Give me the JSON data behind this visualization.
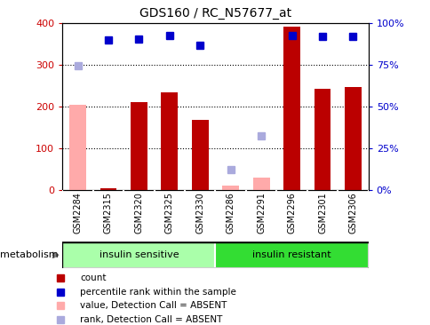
{
  "title": "GDS160 / RC_N57677_at",
  "samples": [
    "GSM2284",
    "GSM2315",
    "GSM2320",
    "GSM2325",
    "GSM2330",
    "GSM2286",
    "GSM2291",
    "GSM2296",
    "GSM2301",
    "GSM2306"
  ],
  "count_values": [
    205,
    5,
    210,
    233,
    167,
    10,
    30,
    390,
    242,
    247
  ],
  "count_absent": [
    true,
    false,
    false,
    false,
    false,
    true,
    true,
    false,
    false,
    false
  ],
  "rank_values": [
    298,
    358,
    362,
    370,
    346,
    50,
    130,
    370,
    368,
    368
  ],
  "rank_absent": [
    true,
    false,
    false,
    false,
    false,
    true,
    true,
    false,
    false,
    false
  ],
  "groups": [
    {
      "label": "insulin sensitive",
      "start": 0,
      "end": 5,
      "color": "#AAFFAA"
    },
    {
      "label": "insulin resistant",
      "start": 5,
      "end": 10,
      "color": "#33DD33"
    }
  ],
  "group_label": "metabolism",
  "ylim_left": [
    0,
    400
  ],
  "ylim_right": [
    0,
    100
  ],
  "yticks_left": [
    0,
    100,
    200,
    300,
    400
  ],
  "yticks_right": [
    0,
    25,
    50,
    75,
    100
  ],
  "yticklabels_right": [
    "0%",
    "25%",
    "50%",
    "75%",
    "100%"
  ],
  "bar_color": "#BB0000",
  "bar_absent_color": "#FFAAAA",
  "rank_color": "#0000CC",
  "rank_absent_color": "#AAAADD",
  "bg_color": "#D8D8D8",
  "left_tick_color": "#CC0000",
  "right_tick_color": "#0000CC",
  "legend_items": [
    {
      "color": "#BB0000",
      "label": "count"
    },
    {
      "color": "#0000CC",
      "label": "percentile rank within the sample"
    },
    {
      "color": "#FFAAAA",
      "label": "value, Detection Call = ABSENT"
    },
    {
      "color": "#AAAADD",
      "label": "rank, Detection Call = ABSENT"
    }
  ]
}
